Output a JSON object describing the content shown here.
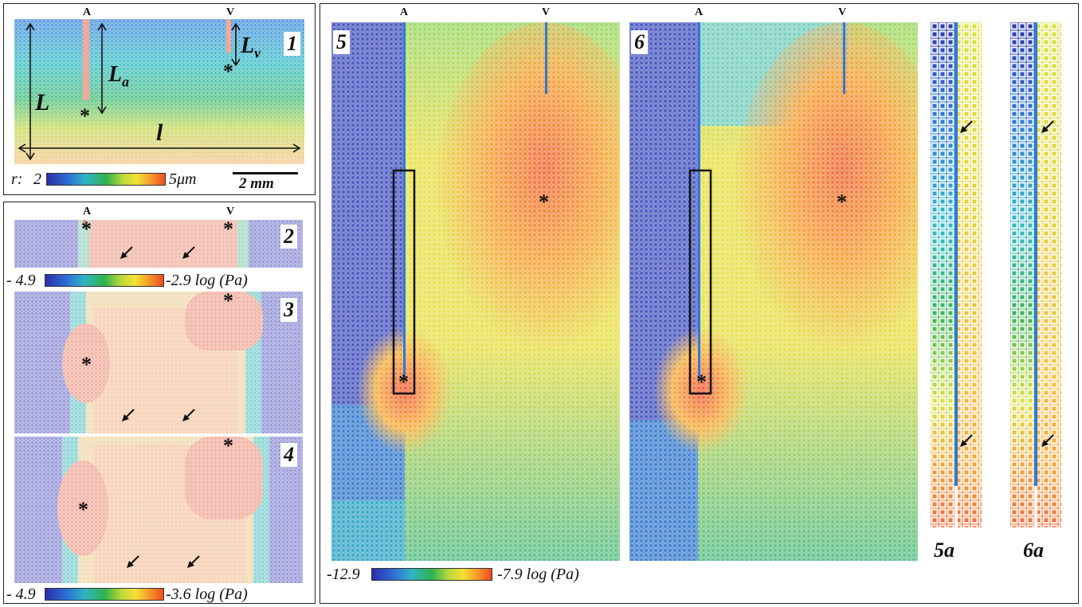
{
  "labels": {
    "artery": "A",
    "vein": "V",
    "panels": [
      "1",
      "2",
      "3",
      "4",
      "5",
      "6",
      "5a",
      "6a"
    ],
    "dim_L": "L",
    "dim_l": "l",
    "dim_La_base": "L",
    "dim_La_sub": "a",
    "dim_Lv_base": "L",
    "dim_Lv_sub": "v",
    "asterisk": "*"
  },
  "scales": {
    "radius": {
      "prefix": "r:",
      "min": "2",
      "max": "5μm"
    },
    "scale_bar": "2 mm",
    "pressure_2": {
      "min": "- 4.9",
      "max": "-2.9 log (Pa)"
    },
    "pressure_4": {
      "min": "- 4.9",
      "max": "-3.6 log (Pa)"
    },
    "pressure_56": {
      "min": "-12.9",
      "max": "-7.9 log (Pa)"
    }
  },
  "colors": {
    "deep_blue": "#3a3fa8",
    "blue": "#2f7bd6",
    "cyan": "#33b8c8",
    "green": "#3db45a",
    "yellow": "#e8e23a",
    "orange": "#f59a2a",
    "red": "#ef5a3a",
    "pink": "#f2a8a0"
  }
}
